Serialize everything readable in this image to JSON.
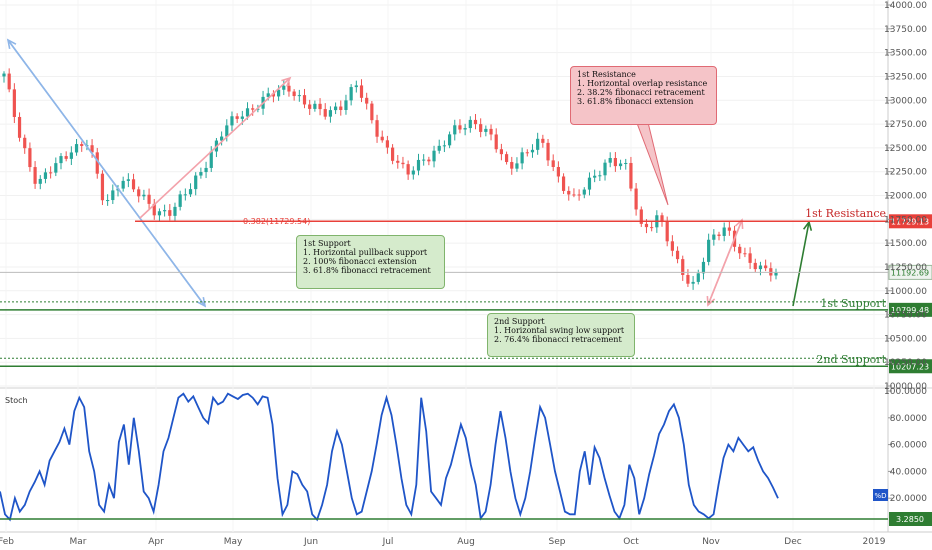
{
  "chart_data": [
    {
      "type": "candlestick",
      "ylim": [
        10000,
        14000
      ],
      "y_ticks": [
        "14000.00",
        "13750.00",
        "13500.00",
        "13250.00",
        "13000.00",
        "12750.00",
        "12500.00",
        "12250.00",
        "12000.00",
        "11750.00",
        "11500.00",
        "11250.00",
        "11000.00",
        "10750.00",
        "10500.00",
        "10250.00",
        "10000.00"
      ],
      "x_ticks": [
        "Feb",
        "Mar",
        "Apr",
        "May",
        "Jun",
        "Jul",
        "Aug",
        "Sep",
        "Oct",
        "Nov",
        "Dec",
        "2019"
      ],
      "close_path": [
        [
          "Feb",
          13250
        ],
        [
          "Feb",
          12600
        ],
        [
          "Feb",
          12100
        ],
        [
          "Feb",
          12300
        ],
        [
          "Feb",
          12500
        ],
        [
          "Mar",
          12550
        ],
        [
          "Mar",
          11900
        ],
        [
          "Mar",
          12200
        ],
        [
          "Mar",
          12000
        ],
        [
          "Mar",
          11850
        ],
        [
          "Apr",
          11830
        ],
        [
          "Apr",
          12050
        ],
        [
          "Apr",
          12350
        ],
        [
          "Apr",
          12650
        ],
        [
          "May",
          12850
        ],
        [
          "May",
          12950
        ],
        [
          "May",
          13050
        ],
        [
          "May",
          13150
        ],
        [
          "May",
          12950
        ],
        [
          "Jun",
          12850
        ],
        [
          "Jun",
          12950
        ],
        [
          "Jun",
          13150
        ],
        [
          "Jun",
          12750
        ],
        [
          "Jul",
          12450
        ],
        [
          "Jul",
          12200
        ],
        [
          "Jul",
          12400
        ],
        [
          "Jul",
          12500
        ],
        [
          "Aug",
          12700
        ],
        [
          "Aug",
          12800
        ],
        [
          "Aug",
          12600
        ],
        [
          "Aug",
          12300
        ],
        [
          "Aug",
          12450
        ],
        [
          "Sep",
          12550
        ],
        [
          "Sep",
          12200
        ],
        [
          "Sep",
          11950
        ],
        [
          "Sep",
          12150
        ],
        [
          "Sep",
          12400
        ],
        [
          "Oct",
          12300
        ],
        [
          "Oct",
          11650
        ],
        [
          "Oct",
          11800
        ],
        [
          "Oct",
          11300
        ],
        [
          "Oct",
          11050
        ],
        [
          "Nov",
          11500
        ],
        [
          "Nov",
          11650
        ],
        [
          "Nov",
          11400
        ],
        [
          "Nov",
          11200
        ],
        [
          "Nov",
          11192.69
        ]
      ],
      "levels": [
        {
          "name": "1st Resistance",
          "value": 11729.13,
          "label": "11729.13",
          "color": "#e8403a"
        },
        {
          "name": "1st Support",
          "value": 10799.48,
          "label": "10799.48",
          "color": "#2e7d32"
        },
        {
          "name": "2nd Support",
          "value": 10207.23,
          "label": "10207.23",
          "color": "#2e7d32"
        }
      ],
      "last_price": {
        "value": 11192.69,
        "label": "11192.69"
      },
      "fib_label": "0.382(11729.54)",
      "annotations": {
        "resistance_title": "1st Resistance",
        "resistance_lines": [
          "1. Horizontal overlap resistance",
          "2. 38.2% fibonacci retracement",
          "3. 61.8% fibonacci extension"
        ],
        "support1_title": "1st Support",
        "support1_lines": [
          "1. Horizontal pullback support",
          "2. 100% fibonacci extension",
          "3. 61.8% fibonacci retracement"
        ],
        "support2_title": "2nd Support",
        "support2_lines": [
          "1. Horizontal swing low support",
          "2. 76.4% fibonacci retracement"
        ]
      }
    },
    {
      "type": "line",
      "title": "Stoch",
      "ylim": [
        0,
        100
      ],
      "y_ticks": [
        "100.0000",
        "80.0000",
        "60.0000",
        "40.0000",
        "20.0000"
      ],
      "series": [
        {
          "name": "%D",
          "last_value": 20,
          "color": "#1f55c8"
        }
      ],
      "level_label": "3.2850",
      "values": [
        25,
        8,
        4,
        20,
        10,
        15,
        25,
        32,
        40,
        30,
        48,
        55,
        62,
        72,
        60,
        85,
        95,
        88,
        55,
        40,
        15,
        10,
        30,
        20,
        62,
        75,
        45,
        80,
        55,
        25,
        20,
        10,
        30,
        55,
        65,
        80,
        95,
        98,
        92,
        96,
        88,
        80,
        76,
        95,
        90,
        92,
        98,
        96,
        94,
        97,
        98,
        95,
        90,
        96,
        95,
        75,
        35,
        8,
        15,
        40,
        38,
        30,
        25,
        8,
        4,
        15,
        30,
        55,
        70,
        60,
        40,
        20,
        8,
        10,
        25,
        40,
        60,
        82,
        95,
        82,
        60,
        35,
        15,
        8,
        30,
        95,
        70,
        25,
        20,
        15,
        35,
        45,
        60,
        75,
        65,
        45,
        30,
        5,
        10,
        30,
        60,
        85,
        65,
        40,
        20,
        8,
        20,
        40,
        65,
        88,
        80,
        60,
        40,
        25,
        10,
        8,
        8,
        40,
        55,
        30,
        58,
        50,
        35,
        22,
        10,
        5,
        15,
        45,
        35,
        8,
        20,
        38,
        52,
        68,
        75,
        85,
        90,
        80,
        60,
        30,
        15,
        10,
        8,
        5,
        8,
        30,
        50,
        60,
        55,
        65,
        60,
        55,
        58,
        48,
        40,
        35,
        28,
        20
      ]
    }
  ],
  "legend": {
    "stoch_badge": "%D"
  },
  "colors": {
    "candle_up": "#26a69a",
    "candle_down": "#ef5350",
    "arrow_blue": "#8fb6e8",
    "arrow_pink": "#f3a2ab",
    "arrow_green": "#2e7d32"
  }
}
